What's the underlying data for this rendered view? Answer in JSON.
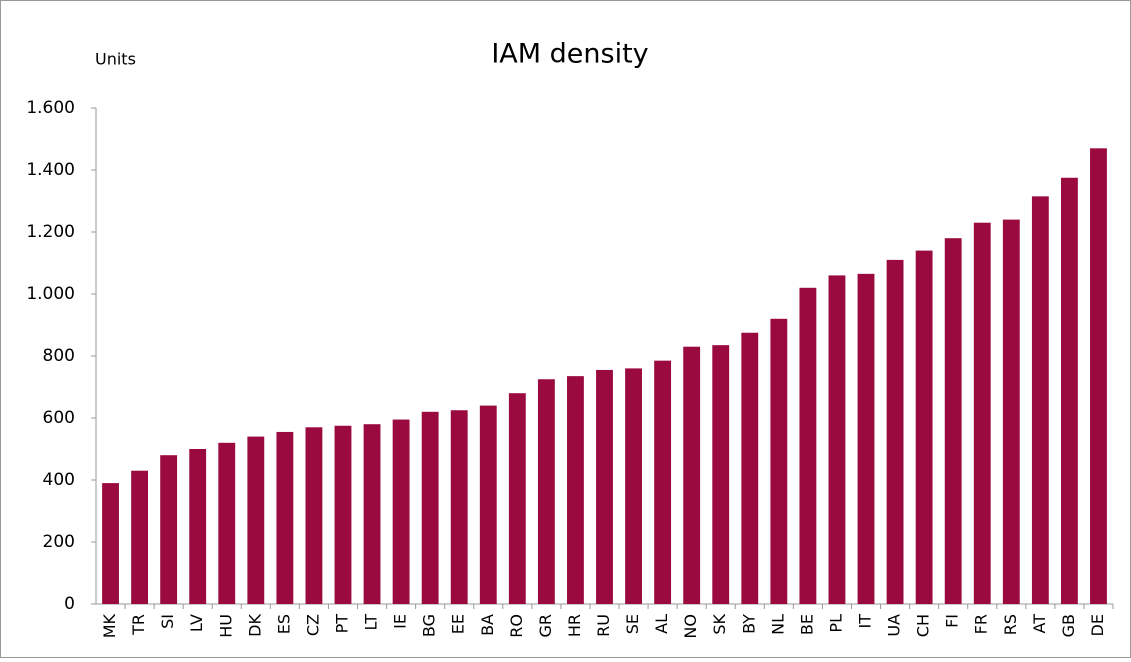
{
  "chart_data": {
    "type": "bar",
    "title": "IAM density",
    "y_label": "Units",
    "categories": [
      "MK",
      "TR",
      "SI",
      "LV",
      "HU",
      "DK",
      "ES",
      "CZ",
      "PT",
      "LT",
      "IE",
      "BG",
      "EE",
      "BA",
      "RO",
      "GR",
      "HR",
      "RU",
      "SE",
      "AL",
      "NO",
      "SK",
      "BY",
      "NL",
      "BE",
      "PL",
      "IT",
      "UA",
      "CH",
      "FI",
      "FR",
      "RS",
      "AT",
      "GB",
      "DE"
    ],
    "values": [
      390,
      430,
      480,
      500,
      520,
      540,
      555,
      570,
      575,
      580,
      595,
      620,
      625,
      640,
      680,
      725,
      735,
      755,
      760,
      785,
      830,
      835,
      875,
      920,
      1020,
      1060,
      1065,
      1110,
      1140,
      1180,
      1230,
      1240,
      1315,
      1375,
      1470
    ],
    "color": "#9b0a3f",
    "ylim": [
      0,
      1600
    ],
    "yticks": [
      0,
      200,
      400,
      600,
      800,
      {
        "value": 1000,
        "label": "1.000"
      },
      {
        "value": 1200,
        "label": "1.200"
      },
      {
        "value": 1400,
        "label": "1.400"
      },
      {
        "value": 1600,
        "label": "1.600"
      }
    ]
  }
}
